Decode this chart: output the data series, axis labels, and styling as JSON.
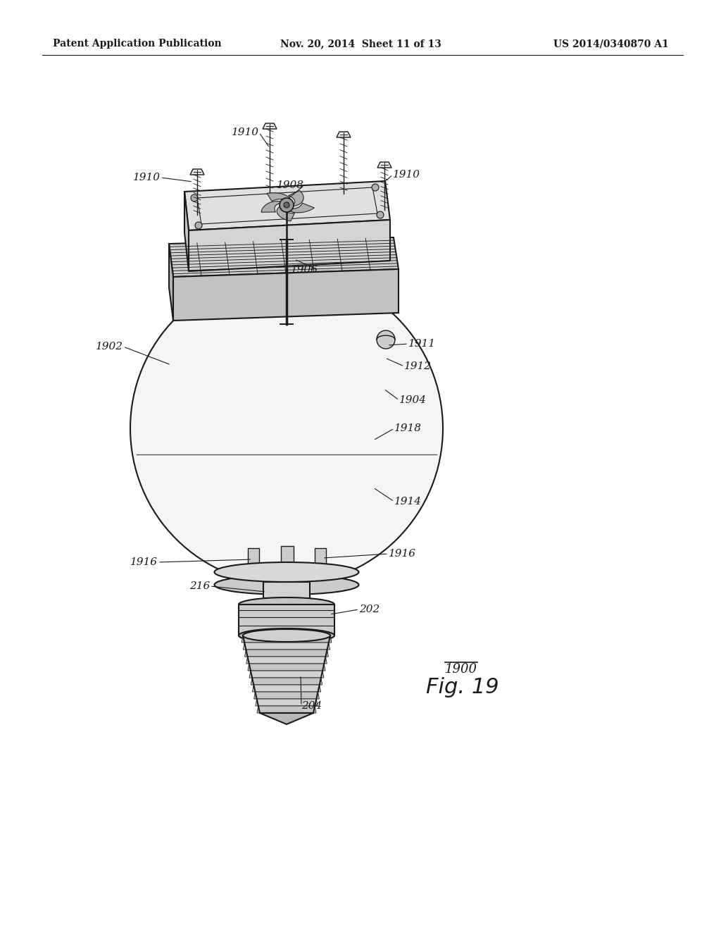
{
  "bg_color": "#ffffff",
  "line_color": "#1a1a1a",
  "header_left": "Patent Application Publication",
  "header_mid": "Nov. 20, 2014  Sheet 11 of 13",
  "header_right": "US 2014/0340870 A1",
  "fig_label": "1900",
  "fig_number": "Fig. 19",
  "label_fontsize": 11,
  "header_fontsize": 10,
  "fig_label_fontsize": 13,
  "fig_number_fontsize": 22
}
